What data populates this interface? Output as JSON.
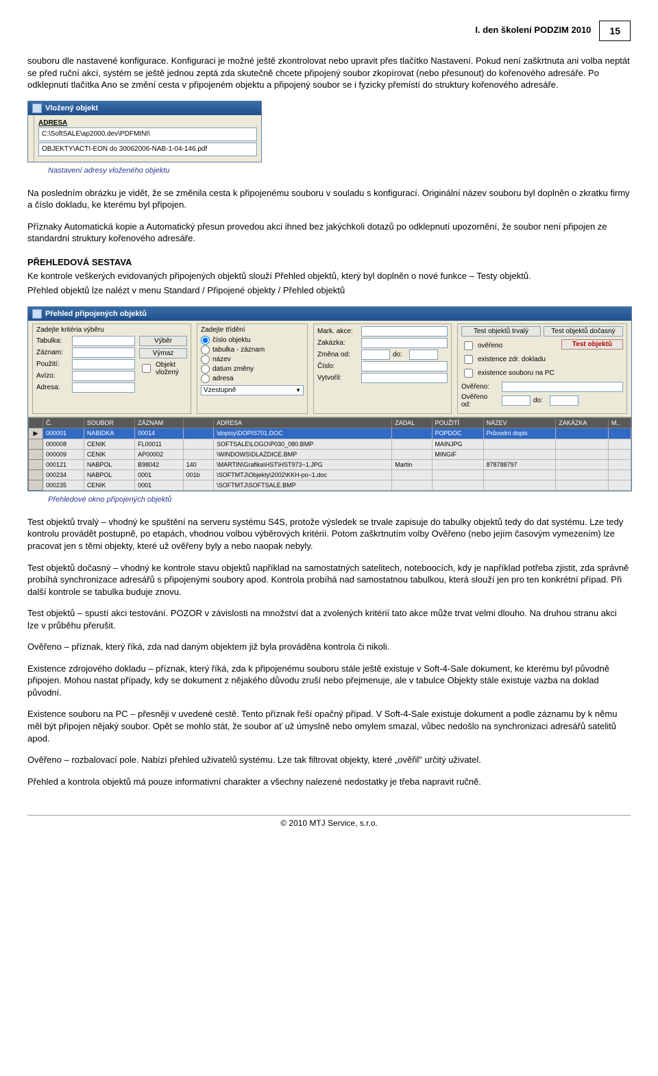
{
  "header": {
    "title": "I. den školení PODZIM 2010",
    "page_number": "15"
  },
  "p1": "souboru dle nastavené konfigurace. Konfiguraci je možné ještě zkontrolovat nebo upravit přes tlačítko Nastavení. Pokud není zaškrtnuta ani volba neptát se před ruční akcí, systém se ještě jednou zeptá zda skutečně chcete připojený soubor zkopírovat (nebo přesunout) do kořenového adresáře. Po odklepnutí tlačítka Ano se změní cesta v připojeném objektu a připojený soubor se i fyzicky přemístí do struktury kořenového adresáře.",
  "win1": {
    "title": "Vložený objekt",
    "label1": "ADRESA",
    "path1": "C:\\SoftSALE\\ap2000.dev\\PDFMINI\\",
    "path2": "OBJEKTY\\ACTI-EON do 30062006-NAB-1-04-146.pdf"
  },
  "cap1": "Nastavení adresy vloženého objektu",
  "p2": "Na posledním obrázku je vidět, že se změnila cesta k připojenému souboru v souladu s konfigurací. Originální název souboru byl doplněn o zkratku firmy a číslo dokladu, ke kterému byl připojen.",
  "p3": "Příznaky Automatická kopie a Automatický přesun provedou akci ihned bez jakýchkoli dotazů po odklepnutí upozornění, že soubor není připojen ze standardní struktury kořenového adresáře.",
  "sec_title": "PŘEHLEDOVÁ SESTAVA",
  "p4": "Ke kontrole veškerých evidovaných připojených objektů slouží Přehled objektů, který byl doplněn o nové funkce – Testy objektů.",
  "p5": "Přehled objektů lze nalézt v menu Standard / Připojené objekty / Přehled objektů",
  "win2": {
    "title": "Přehled připojených objektů",
    "panel1_head": "Zadejte kritéria výběru",
    "panel2_head": "Zadejte třídění",
    "labels": {
      "tabulka": "Tabulka:",
      "zaznam": "Záznam:",
      "pouziti": "Použití:",
      "avizo": "Avízo:",
      "adresa": "Adresa:",
      "mark": "Mark. akce:",
      "zakazka": "Zakázka:",
      "zmena_od": "Změna od:",
      "do": "do:",
      "cislo": "Číslo:",
      "vytvoril": "Vytvořil:",
      "overeno": "Ověřeno:",
      "overeno_od": "Ověřeno od:"
    },
    "btn_vyber": "Výběr",
    "btn_vymaz": "Výmaz",
    "chk_vlozeny": "Objekt vložený",
    "radio1": "číslo objektu",
    "radio2": "tabulka - záznam",
    "radio3": "název",
    "radio4": "datum změny",
    "radio5": "adresa",
    "vzestupne": "Vzestupně",
    "btn_test_trvaly": "Test objektů trvalý",
    "btn_test_docasny": "Test objektů dočasný",
    "btn_test_objektu": "Test objektů",
    "chk_overeno": "ověřeno",
    "chk_zdroj": "existence zdr. dokladu",
    "chk_soubor": "existence souboru na PC",
    "cols": [
      "",
      "Č.",
      "SOUBOR",
      "ZÁZNAM",
      "",
      "ADRESA",
      "ZADAL",
      "POUŽITÍ",
      "NÁZEV",
      "ZAKÁZKA",
      "M.."
    ],
    "rows": [
      [
        "▶",
        "000001",
        "NABIDKA",
        "00014",
        "",
        "\\dopisy\\DOPIS701.DOC",
        "",
        "POPDOC",
        "Průvodní dopis",
        "",
        ""
      ],
      [
        "",
        "000008",
        "CENIK",
        "FL00011",
        "",
        "SOFTSALE\\LOGO\\P030_080.BMP",
        "",
        "MAINJPG",
        "",
        "",
        ""
      ],
      [
        "",
        "000009",
        "CENIK",
        "AP00002",
        "",
        "\\WINDOWS\\DLAZDICE.BMP",
        "",
        "MINGIF",
        "",
        "",
        ""
      ],
      [
        "",
        "000121",
        "NABPOL",
        "B98042",
        "140",
        "\\MARTIN\\Grafika\\HST\\HST973~1.JPG",
        "Martin",
        "",
        "878788797",
        "",
        ""
      ],
      [
        "",
        "000234",
        "NABPOL",
        "0001",
        "001b",
        "\\SOFTMTJ\\Objekty\\2002\\KKH-po~1.doc",
        "",
        "",
        "",
        "",
        ""
      ],
      [
        "",
        "000235",
        "CENIK",
        "0001",
        "",
        "\\SOFTMTJ\\SOFTSALE.BMP",
        "",
        "",
        "",
        "",
        ""
      ]
    ]
  },
  "cap2": "Přehledové okno připojených objektů",
  "p6": "Test objektů trvalý – vhodný ke spuštění na serveru systému S4S, protože výsledek se trvale zapisuje do tabulky objektů tedy do dat systému. Lze tedy kontrolu provádět postupně, po etapách, vhodnou volbou výběrových kritérií. Potom zaškrtnutím volby Ověřeno (nebo jejím časovým vymezením) lze pracovat jen s těmi objekty, které už ověřeny byly a nebo naopak nebyly.",
  "p7": "Test objektů dočasný – vhodný ke kontrole stavu objektů například na samostatných satelitech, noteboocích, kdy je například potřeba zjistit, zda správně probíhá synchronizace adresářů s připojenými soubory apod. Kontrola probíhá nad samostatnou tabulkou, která slouží jen pro ten konkrétní případ. Při další kontrole se tabulka buduje znovu.",
  "p8": "Test objektů – spustí akci testování. POZOR v závislosti na množství dat a zvolených kritérií tato akce může trvat velmi dlouho. Na druhou stranu akci lze v průběhu přerušit.",
  "p9": "Ověřeno – příznak, který říká, zda nad daným objektem již byla prováděna kontrola či nikoli.",
  "p10": "Existence zdrojového dokladu – příznak, který říká, zda k připojenému souboru stále ještě existuje v Soft-4-Sale dokument, ke kterému byl původně připojen. Mohou nastat případy, kdy se dokument z nějakého důvodu zruší nebo přejmenuje, ale v tabulce Objekty stále existuje vazba na doklad původní.",
  "p11": "Existence souboru na PC – přesněji v uvedené cestě. Tento příznak řeší opačný případ. V Soft-4-Sale existuje dokument a podle záznamu by k němu měl být připojen nějaký soubor. Opět se mohlo stát, že soubor ať už úmyslně nebo omylem smazal, vůbec nedošlo na synchronizaci adresářů satelitů apod.",
  "p12": "Ověřeno – rozbalovací pole. Nabízí přehled uživatelů systému. Lze tak filtrovat objekty, které „ověřil\" určitý uživatel.",
  "p13": "Přehled a kontrola objektů má pouze informativní charakter a všechny nalezené nedostatky je třeba napravit ručně.",
  "footer": "© 2010 MTJ Service, s.r.o."
}
